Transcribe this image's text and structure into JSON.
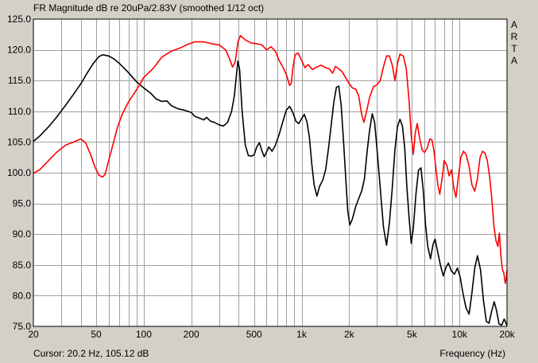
{
  "chart_data": {
    "type": "line",
    "title": "FR Magnitude dB re 20uPa/2.83V (smoothed 1/12 oct)",
    "xlabel": "Frequency (Hz)",
    "ylabel": "",
    "xscale": "log",
    "xlim": [
      20,
      20000
    ],
    "ylim": [
      75,
      125
    ],
    "grid": true,
    "x_ticks": [
      {
        "value": 20,
        "label": "20"
      },
      {
        "value": 50,
        "label": "50"
      },
      {
        "value": 100,
        "label": "100"
      },
      {
        "value": 200,
        "label": "200"
      },
      {
        "value": 500,
        "label": "500"
      },
      {
        "value": 1000,
        "label": "1k"
      },
      {
        "value": 2000,
        "label": "2k"
      },
      {
        "value": 5000,
        "label": "5k"
      },
      {
        "value": 10000,
        "label": "10k"
      },
      {
        "value": 20000,
        "label": "20k"
      }
    ],
    "y_ticks": [
      {
        "value": 125,
        "label": "125.0"
      },
      {
        "value": 120,
        "label": "120.0"
      },
      {
        "value": 115,
        "label": "115.0"
      },
      {
        "value": 110,
        "label": "110.0"
      },
      {
        "value": 105,
        "label": "105.0"
      },
      {
        "value": 100,
        "label": "100.0"
      },
      {
        "value": 95,
        "label": "95.0"
      },
      {
        "value": 90,
        "label": "90.0"
      },
      {
        "value": 85,
        "label": "85.0"
      },
      {
        "value": 80,
        "label": "80.0"
      },
      {
        "value": 75,
        "label": "75.0"
      }
    ],
    "series": [
      {
        "color": "#000000",
        "points": [
          [
            20,
            105.1
          ],
          [
            22,
            106.0
          ],
          [
            25,
            107.5
          ],
          [
            28,
            109.0
          ],
          [
            32,
            111.0
          ],
          [
            36,
            112.8
          ],
          [
            40,
            114.5
          ],
          [
            44,
            116.3
          ],
          [
            48,
            117.8
          ],
          [
            52,
            118.9
          ],
          [
            55,
            119.2
          ],
          [
            60,
            119.0
          ],
          [
            65,
            118.5
          ],
          [
            70,
            117.8
          ],
          [
            80,
            116.3
          ],
          [
            90,
            114.8
          ],
          [
            100,
            113.8
          ],
          [
            110,
            113.0
          ],
          [
            120,
            112.0
          ],
          [
            130,
            111.6
          ],
          [
            140,
            111.7
          ],
          [
            150,
            110.9
          ],
          [
            165,
            110.4
          ],
          [
            180,
            110.2
          ],
          [
            200,
            109.8
          ],
          [
            210,
            109.2
          ],
          [
            225,
            108.9
          ],
          [
            240,
            108.6
          ],
          [
            250,
            109.0
          ],
          [
            265,
            108.4
          ],
          [
            280,
            108.2
          ],
          [
            300,
            107.8
          ],
          [
            320,
            107.6
          ],
          [
            340,
            108.2
          ],
          [
            360,
            110.0
          ],
          [
            375,
            112.5
          ],
          [
            385,
            115.5
          ],
          [
            395,
            118.2
          ],
          [
            405,
            116.8
          ],
          [
            420,
            110.0
          ],
          [
            440,
            104.5
          ],
          [
            460,
            102.8
          ],
          [
            480,
            102.7
          ],
          [
            500,
            102.9
          ],
          [
            520,
            104.2
          ],
          [
            540,
            104.9
          ],
          [
            560,
            103.6
          ],
          [
            580,
            102.6
          ],
          [
            600,
            103.4
          ],
          [
            620,
            104.2
          ],
          [
            650,
            103.5
          ],
          [
            680,
            104.4
          ],
          [
            720,
            106.2
          ],
          [
            760,
            108.3
          ],
          [
            800,
            110.2
          ],
          [
            840,
            110.8
          ],
          [
            880,
            109.8
          ],
          [
            920,
            108.4
          ],
          [
            960,
            108.0
          ],
          [
            1000,
            108.8
          ],
          [
            1040,
            109.5
          ],
          [
            1080,
            108.3
          ],
          [
            1120,
            105.8
          ],
          [
            1160,
            101.5
          ],
          [
            1200,
            98.0
          ],
          [
            1250,
            96.2
          ],
          [
            1300,
            97.8
          ],
          [
            1360,
            98.8
          ],
          [
            1420,
            100.5
          ],
          [
            1480,
            104.0
          ],
          [
            1540,
            107.8
          ],
          [
            1600,
            111.5
          ],
          [
            1660,
            113.9
          ],
          [
            1720,
            114.1
          ],
          [
            1780,
            111.0
          ],
          [
            1840,
            105.5
          ],
          [
            1900,
            99.5
          ],
          [
            1960,
            93.8
          ],
          [
            2020,
            91.5
          ],
          [
            2100,
            92.5
          ],
          [
            2200,
            94.5
          ],
          [
            2300,
            95.8
          ],
          [
            2400,
            97.0
          ],
          [
            2500,
            99.0
          ],
          [
            2600,
            103.5
          ],
          [
            2700,
            107.0
          ],
          [
            2800,
            109.6
          ],
          [
            2900,
            108.2
          ],
          [
            3000,
            104.0
          ],
          [
            3150,
            97.5
          ],
          [
            3300,
            91.2
          ],
          [
            3450,
            88.2
          ],
          [
            3600,
            91.8
          ],
          [
            3750,
            97.5
          ],
          [
            3900,
            103.8
          ],
          [
            4050,
            107.5
          ],
          [
            4200,
            108.7
          ],
          [
            4350,
            107.6
          ],
          [
            4500,
            104.0
          ],
          [
            4650,
            97.5
          ],
          [
            4800,
            92.5
          ],
          [
            4950,
            88.5
          ],
          [
            5100,
            91.0
          ],
          [
            5300,
            96.5
          ],
          [
            5500,
            100.4
          ],
          [
            5700,
            100.8
          ],
          [
            5900,
            97.0
          ],
          [
            6100,
            91.5
          ],
          [
            6300,
            88.0
          ],
          [
            6550,
            86.0
          ],
          [
            6800,
            88.3
          ],
          [
            7000,
            89.2
          ],
          [
            7300,
            87.0
          ],
          [
            7600,
            84.8
          ],
          [
            7900,
            83.2
          ],
          [
            8200,
            84.6
          ],
          [
            8500,
            85.3
          ],
          [
            8900,
            84.0
          ],
          [
            9300,
            83.5
          ],
          [
            9700,
            84.5
          ],
          [
            10100,
            83.0
          ],
          [
            10500,
            80.5
          ],
          [
            11000,
            78.0
          ],
          [
            11500,
            77.0
          ],
          [
            12000,
            80.5
          ],
          [
            12500,
            84.5
          ],
          [
            13000,
            86.5
          ],
          [
            13600,
            84.2
          ],
          [
            14200,
            79.2
          ],
          [
            14800,
            75.8
          ],
          [
            15400,
            75.5
          ],
          [
            16000,
            77.5
          ],
          [
            16600,
            79.0
          ],
          [
            17200,
            77.5
          ],
          [
            17800,
            75.4
          ],
          [
            18500,
            75.2
          ],
          [
            19200,
            76.2
          ],
          [
            20000,
            75.1
          ]
        ]
      },
      {
        "color": "#ff0000",
        "points": [
          [
            20,
            99.9
          ],
          [
            22,
            100.5
          ],
          [
            25,
            102.0
          ],
          [
            28,
            103.3
          ],
          [
            32,
            104.5
          ],
          [
            36,
            105.0
          ],
          [
            40,
            105.5
          ],
          [
            43,
            104.8
          ],
          [
            46,
            103.0
          ],
          [
            49,
            101.0
          ],
          [
            52,
            99.6
          ],
          [
            55,
            99.3
          ],
          [
            57,
            99.8
          ],
          [
            60,
            102.0
          ],
          [
            64,
            104.7
          ],
          [
            68,
            107.3
          ],
          [
            73,
            109.5
          ],
          [
            80,
            111.5
          ],
          [
            90,
            113.5
          ],
          [
            100,
            115.5
          ],
          [
            115,
            117.0
          ],
          [
            130,
            118.8
          ],
          [
            150,
            119.8
          ],
          [
            170,
            120.3
          ],
          [
            190,
            120.9
          ],
          [
            210,
            121.3
          ],
          [
            240,
            121.3
          ],
          [
            270,
            121.0
          ],
          [
            300,
            120.8
          ],
          [
            330,
            120.0
          ],
          [
            350,
            118.5
          ],
          [
            365,
            117.2
          ],
          [
            380,
            118.0
          ],
          [
            395,
            121.3
          ],
          [
            410,
            122.3
          ],
          [
            440,
            121.6
          ],
          [
            480,
            121.1
          ],
          [
            520,
            121.0
          ],
          [
            560,
            120.8
          ],
          [
            600,
            120.0
          ],
          [
            640,
            120.5
          ],
          [
            680,
            119.8
          ],
          [
            720,
            118.3
          ],
          [
            760,
            117.2
          ],
          [
            800,
            116.0
          ],
          [
            840,
            114.2
          ],
          [
            860,
            114.6
          ],
          [
            880,
            117.0
          ],
          [
            910,
            119.2
          ],
          [
            950,
            119.5
          ],
          [
            1000,
            118.3
          ],
          [
            1050,
            117.1
          ],
          [
            1100,
            117.6
          ],
          [
            1170,
            116.8
          ],
          [
            1250,
            117.2
          ],
          [
            1330,
            117.5
          ],
          [
            1420,
            117.1
          ],
          [
            1500,
            116.9
          ],
          [
            1570,
            116.2
          ],
          [
            1640,
            117.3
          ],
          [
            1720,
            116.9
          ],
          [
            1800,
            116.5
          ],
          [
            1900,
            115.5
          ],
          [
            2000,
            114.5
          ],
          [
            2100,
            113.8
          ],
          [
            2200,
            113.6
          ],
          [
            2300,
            112.5
          ],
          [
            2400,
            109.5
          ],
          [
            2480,
            108.2
          ],
          [
            2560,
            109.6
          ],
          [
            2700,
            112.3
          ],
          [
            2850,
            114.0
          ],
          [
            3000,
            114.3
          ],
          [
            3150,
            115.0
          ],
          [
            3300,
            117.2
          ],
          [
            3450,
            119.0
          ],
          [
            3600,
            119.0
          ],
          [
            3750,
            117.5
          ],
          [
            3900,
            115.0
          ],
          [
            4050,
            117.8
          ],
          [
            4200,
            119.3
          ],
          [
            4400,
            119.0
          ],
          [
            4600,
            117.0
          ],
          [
            4800,
            111.5
          ],
          [
            4950,
            106.0
          ],
          [
            5100,
            103.0
          ],
          [
            5250,
            106.5
          ],
          [
            5400,
            108.0
          ],
          [
            5600,
            105.5
          ],
          [
            5800,
            103.7
          ],
          [
            6000,
            103.3
          ],
          [
            6250,
            104.0
          ],
          [
            6500,
            105.5
          ],
          [
            6700,
            105.3
          ],
          [
            6900,
            103.5
          ],
          [
            7100,
            100.6
          ],
          [
            7300,
            98.0
          ],
          [
            7500,
            96.5
          ],
          [
            7800,
            99.5
          ],
          [
            8000,
            102.0
          ],
          [
            8300,
            101.3
          ],
          [
            8600,
            99.5
          ],
          [
            8900,
            100.5
          ],
          [
            9200,
            97.5
          ],
          [
            9500,
            96.0
          ],
          [
            9800,
            99.0
          ],
          [
            10200,
            102.5
          ],
          [
            10600,
            103.5
          ],
          [
            11000,
            103.0
          ],
          [
            11500,
            101.0
          ],
          [
            12000,
            98.0
          ],
          [
            12500,
            97.0
          ],
          [
            13000,
            99.0
          ],
          [
            13500,
            102.5
          ],
          [
            14000,
            103.5
          ],
          [
            14500,
            103.2
          ],
          [
            15000,
            102.0
          ],
          [
            15500,
            99.5
          ],
          [
            16000,
            96.0
          ],
          [
            16500,
            91.5
          ],
          [
            17000,
            89.0
          ],
          [
            17500,
            88.0
          ],
          [
            17900,
            90.2
          ],
          [
            18300,
            86.5
          ],
          [
            18700,
            84.3
          ],
          [
            19100,
            83.7
          ],
          [
            19500,
            82.0
          ],
          [
            19800,
            82.8
          ],
          [
            20000,
            84.2
          ]
        ]
      }
    ]
  },
  "logo_text": "ARTA",
  "cursor_readout": "Cursor: 20.2 Hz, 105.12 dB"
}
